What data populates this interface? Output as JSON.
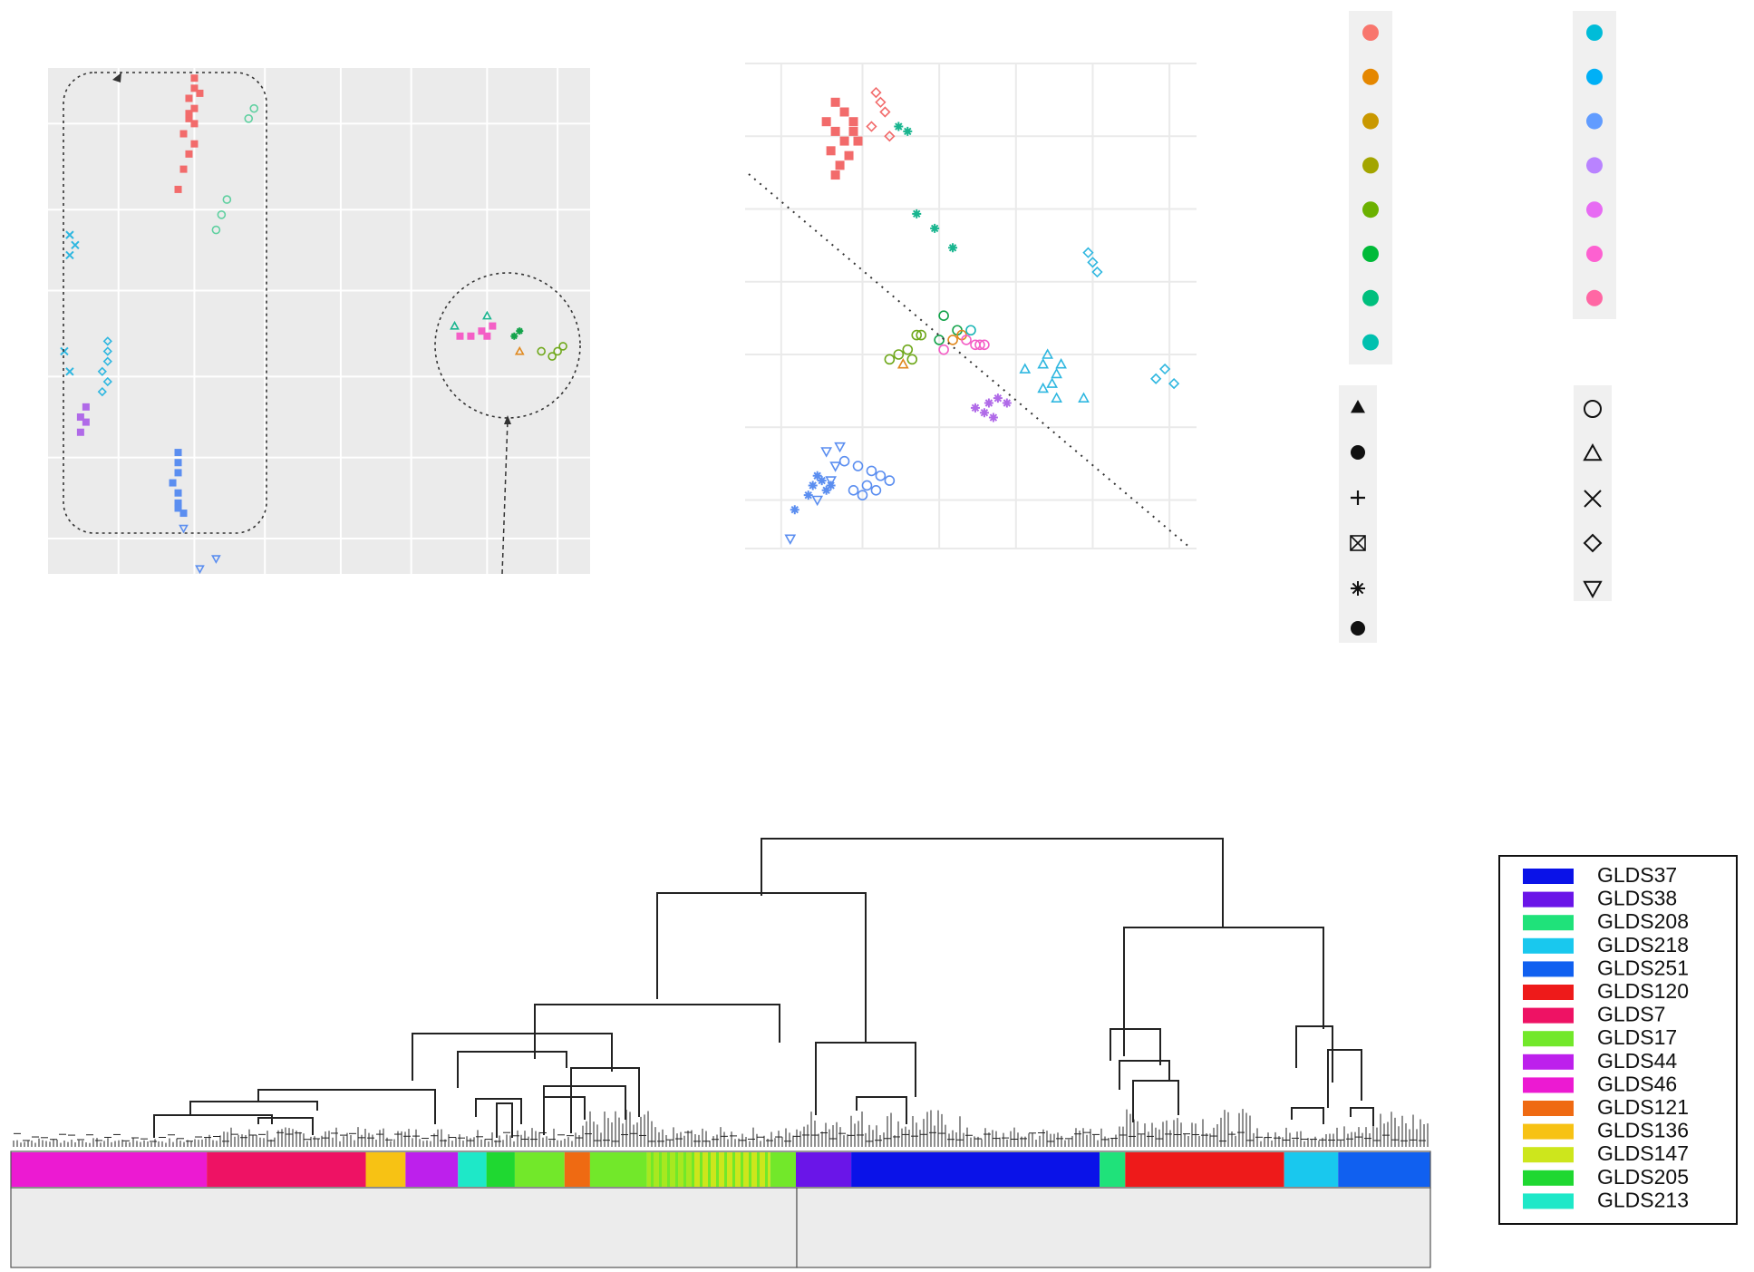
{
  "chart_data": [
    {
      "type": "scatter",
      "panel": "left",
      "title": "",
      "xlabel": "",
      "ylabel": "",
      "grid": true,
      "background": "#ebebeb",
      "annotations": [
        "dotted rounded-rectangle group",
        "dotted circle group",
        "dashed arrows"
      ],
      "series": [
        {
          "color": "#f26b6b",
          "shape": "square",
          "points": [
            [
              0.27,
              0.02
            ],
            [
              0.27,
              0.04
            ],
            [
              0.26,
              0.06
            ],
            [
              0.27,
              0.08
            ],
            [
              0.26,
              0.1
            ],
            [
              0.27,
              0.11
            ],
            [
              0.25,
              0.13
            ],
            [
              0.27,
              0.15
            ],
            [
              0.26,
              0.17
            ],
            [
              0.25,
              0.2
            ],
            [
              0.24,
              0.24
            ],
            [
              0.26,
              0.09
            ],
            [
              0.28,
              0.05
            ]
          ]
        },
        {
          "color": "#5fd0a0",
          "shape": "circle",
          "points": [
            [
              0.38,
              0.08
            ],
            [
              0.37,
              0.1
            ],
            [
              0.33,
              0.26
            ],
            [
              0.32,
              0.29
            ],
            [
              0.31,
              0.32
            ]
          ]
        },
        {
          "color": "#2fb7e0",
          "shape": "cross",
          "points": [
            [
              0.04,
              0.33
            ],
            [
              0.05,
              0.35
            ],
            [
              0.04,
              0.37
            ],
            [
              0.03,
              0.56
            ],
            [
              0.04,
              0.6
            ]
          ]
        },
        {
          "color": "#2fb7e0",
          "shape": "diamond",
          "points": [
            [
              0.11,
              0.54
            ],
            [
              0.11,
              0.56
            ],
            [
              0.11,
              0.58
            ],
            [
              0.1,
              0.6
            ],
            [
              0.11,
              0.62
            ],
            [
              0.1,
              0.64
            ]
          ]
        },
        {
          "color": "#b06ae8",
          "shape": "square",
          "points": [
            [
              0.07,
              0.67
            ],
            [
              0.06,
              0.69
            ],
            [
              0.07,
              0.7
            ],
            [
              0.06,
              0.72
            ]
          ]
        },
        {
          "color": "#5b8ef0",
          "shape": "square",
          "points": [
            [
              0.24,
              0.76
            ],
            [
              0.24,
              0.78
            ],
            [
              0.24,
              0.8
            ],
            [
              0.23,
              0.82
            ],
            [
              0.24,
              0.84
            ],
            [
              0.24,
              0.86
            ],
            [
              0.25,
              0.88
            ],
            [
              0.24,
              0.87
            ]
          ]
        },
        {
          "color": "#5b8ef0",
          "shape": "triangle-down",
          "points": [
            [
              0.25,
              0.91
            ],
            [
              0.31,
              0.97
            ],
            [
              0.28,
              0.99
            ]
          ]
        },
        {
          "color": "#f45fc6",
          "shape": "square",
          "points": [
            [
              0.76,
              0.53
            ],
            [
              0.78,
              0.53
            ],
            [
              0.8,
              0.52
            ],
            [
              0.81,
              0.53
            ],
            [
              0.82,
              0.51
            ]
          ]
        },
        {
          "color": "#19b58f",
          "shape": "triangle",
          "points": [
            [
              0.75,
              0.51
            ],
            [
              0.81,
              0.49
            ]
          ]
        },
        {
          "color": "#13a34a",
          "shape": "star",
          "points": [
            [
              0.86,
              0.53
            ],
            [
              0.87,
              0.52
            ]
          ]
        },
        {
          "color": "#e0891f",
          "shape": "triangle",
          "points": [
            [
              0.87,
              0.56
            ]
          ]
        },
        {
          "color": "#6fa81b",
          "shape": "circle",
          "points": [
            [
              0.91,
              0.56
            ],
            [
              0.93,
              0.57
            ],
            [
              0.94,
              0.56
            ],
            [
              0.95,
              0.55
            ]
          ]
        }
      ]
    },
    {
      "type": "scatter",
      "panel": "right",
      "title": "",
      "xlabel": "",
      "ylabel": "",
      "grid": true,
      "background": "#ffffff",
      "annotations": [
        "dotted diagonal line"
      ],
      "series": [
        {
          "color": "#f26b6b",
          "shape": "square",
          "points": [
            [
              0.2,
              0.08
            ],
            [
              0.22,
              0.1
            ],
            [
              0.18,
              0.12
            ],
            [
              0.24,
              0.12
            ],
            [
              0.2,
              0.14
            ],
            [
              0.22,
              0.16
            ],
            [
              0.25,
              0.16
            ],
            [
              0.19,
              0.18
            ],
            [
              0.23,
              0.19
            ],
            [
              0.21,
              0.21
            ],
            [
              0.2,
              0.23
            ],
            [
              0.24,
              0.14
            ]
          ]
        },
        {
          "color": "#f26b6b",
          "shape": "diamond",
          "points": [
            [
              0.29,
              0.06
            ],
            [
              0.3,
              0.08
            ],
            [
              0.31,
              0.1
            ],
            [
              0.28,
              0.13
            ],
            [
              0.32,
              0.15
            ]
          ]
        },
        {
          "color": "#19b58f",
          "shape": "star",
          "points": [
            [
              0.34,
              0.13
            ],
            [
              0.36,
              0.14
            ],
            [
              0.38,
              0.31
            ],
            [
              0.42,
              0.34
            ],
            [
              0.46,
              0.38
            ]
          ]
        },
        {
          "color": "#2fb7e0",
          "shape": "diamond",
          "points": [
            [
              0.76,
              0.39
            ],
            [
              0.77,
              0.41
            ],
            [
              0.78,
              0.43
            ],
            [
              0.91,
              0.65
            ],
            [
              0.93,
              0.63
            ],
            [
              0.95,
              0.66
            ]
          ]
        },
        {
          "color": "#2fb7e0",
          "shape": "triangle",
          "points": [
            [
              0.62,
              0.63
            ],
            [
              0.66,
              0.62
            ],
            [
              0.67,
              0.6
            ],
            [
              0.69,
              0.64
            ],
            [
              0.68,
              0.66
            ],
            [
              0.7,
              0.62
            ],
            [
              0.66,
              0.67
            ],
            [
              0.69,
              0.69
            ],
            [
              0.75,
              0.69
            ]
          ]
        },
        {
          "color": "#13a34a",
          "shape": "circle",
          "points": [
            [
              0.44,
              0.52
            ],
            [
              0.47,
              0.55
            ],
            [
              0.43,
              0.57
            ]
          ]
        },
        {
          "color": "#e0891f",
          "shape": "circle",
          "points": [
            [
              0.46,
              0.57
            ],
            [
              0.48,
              0.56
            ]
          ]
        },
        {
          "color": "#6fa81b",
          "shape": "circle",
          "points": [
            [
              0.32,
              0.61
            ],
            [
              0.34,
              0.6
            ],
            [
              0.36,
              0.59
            ],
            [
              0.37,
              0.61
            ],
            [
              0.38,
              0.56
            ],
            [
              0.39,
              0.56
            ]
          ]
        },
        {
          "color": "#e0891f",
          "shape": "triangle",
          "points": [
            [
              0.35,
              0.62
            ]
          ]
        },
        {
          "color": "#f45fc6",
          "shape": "circle",
          "points": [
            [
              0.49,
              0.57
            ],
            [
              0.51,
              0.58
            ],
            [
              0.52,
              0.58
            ],
            [
              0.53,
              0.58
            ],
            [
              0.44,
              0.59
            ]
          ]
        },
        {
          "color": "#19b5b5",
          "shape": "circle",
          "points": [
            [
              0.5,
              0.55
            ]
          ]
        },
        {
          "color": "#b06ae8",
          "shape": "star",
          "points": [
            [
              0.51,
              0.71
            ],
            [
              0.53,
              0.72
            ],
            [
              0.54,
              0.7
            ],
            [
              0.56,
              0.69
            ],
            [
              0.58,
              0.7
            ],
            [
              0.55,
              0.73
            ]
          ]
        },
        {
          "color": "#5b8ef0",
          "shape": "triangle-down",
          "points": [
            [
              0.18,
              0.8
            ],
            [
              0.21,
              0.79
            ],
            [
              0.2,
              0.83
            ],
            [
              0.19,
              0.86
            ],
            [
              0.16,
              0.9
            ],
            [
              0.1,
              0.98
            ]
          ]
        },
        {
          "color": "#5b8ef0",
          "shape": "circle",
          "points": [
            [
              0.22,
              0.82
            ],
            [
              0.25,
              0.83
            ],
            [
              0.28,
              0.84
            ],
            [
              0.3,
              0.85
            ],
            [
              0.27,
              0.87
            ],
            [
              0.32,
              0.86
            ],
            [
              0.24,
              0.88
            ],
            [
              0.29,
              0.88
            ],
            [
              0.26,
              0.89
            ]
          ]
        },
        {
          "color": "#5b8ef0",
          "shape": "star",
          "points": [
            [
              0.16,
              0.85
            ],
            [
              0.17,
              0.86
            ],
            [
              0.15,
              0.87
            ],
            [
              0.18,
              0.88
            ],
            [
              0.14,
              0.89
            ],
            [
              0.19,
              0.87
            ],
            [
              0.11,
              0.92
            ]
          ]
        }
      ]
    },
    {
      "type": "table",
      "panel": "top-legend",
      "title": "",
      "colors_column_1": [
        "#f8766d",
        "#e58700",
        "#c99800",
        "#a3a500",
        "#6bb100",
        "#00ba38",
        "#00bf7d",
        "#00c0af"
      ],
      "colors_column_2": [
        "#00bcd8",
        "#00b0f6",
        "#619cff",
        "#b983ff",
        "#e76bf3",
        "#fd61d1",
        "#ff67a4"
      ],
      "shapes_column_1": [
        "triangle-filled",
        "square-filled",
        "plus",
        "square-cross",
        "asterisk",
        "circle-filled"
      ],
      "shapes_column_2": [
        "circle-open",
        "triangle-open",
        "x",
        "diamond-open",
        "triangle-down-open"
      ]
    },
    {
      "type": "dendrogram",
      "panel": "bottom",
      "title": "",
      "xlabel": "",
      "ylabel": "",
      "legend_position": "right",
      "legend": [
        {
          "label": "GLDS37",
          "color": "#0a12e8"
        },
        {
          "label": "GLDS38",
          "color": "#6a15e8"
        },
        {
          "label": "GLDS208",
          "color": "#1fe27a"
        },
        {
          "label": "GLDS218",
          "color": "#19c8ee"
        },
        {
          "label": "GLDS251",
          "color": "#1060f0"
        },
        {
          "label": "GLDS120",
          "color": "#ee1a1a"
        },
        {
          "label": "GLDS7",
          "color": "#ee1264"
        },
        {
          "label": "GLDS17",
          "color": "#72e82a"
        },
        {
          "label": "GLDS44",
          "color": "#bd20ec"
        },
        {
          "label": "GLDS46",
          "color": "#ec1ad2"
        },
        {
          "label": "GLDS121",
          "color": "#ef6a12"
        },
        {
          "label": "GLDS136",
          "color": "#f7c214"
        },
        {
          "label": "GLDS147",
          "color": "#cde61c"
        },
        {
          "label": "GLDS205",
          "color": "#1fd831"
        },
        {
          "label": "GLDS213",
          "color": "#1ee8c8"
        }
      ],
      "color_bar": [
        {
          "start": 0.0,
          "end": 0.138,
          "color": "#ec1ad2"
        },
        {
          "start": 0.138,
          "end": 0.25,
          "color": "#ee1264"
        },
        {
          "start": 0.25,
          "end": 0.278,
          "color": "#f7c214"
        },
        {
          "start": 0.278,
          "end": 0.315,
          "color": "#bd20ec"
        },
        {
          "start": 0.315,
          "end": 0.335,
          "color": "#1ee8c8"
        },
        {
          "start": 0.335,
          "end": 0.355,
          "color": "#1fd831"
        },
        {
          "start": 0.355,
          "end": 0.39,
          "color": "#72e82a"
        },
        {
          "start": 0.39,
          "end": 0.408,
          "color": "#ef6a12"
        },
        {
          "start": 0.408,
          "end": 0.448,
          "color": "#72e82a"
        },
        {
          "start": 0.448,
          "end": 0.48,
          "color": "#a8e820"
        },
        {
          "start": 0.48,
          "end": 0.535,
          "color": "#cde61c"
        },
        {
          "start": 0.535,
          "end": 0.553,
          "color": "#72e82a"
        },
        {
          "start": 0.553,
          "end": 0.59,
          "color": "#1fd831"
        },
        {
          "start": 0.59,
          "end": 0.59,
          "color": "#1fd831"
        },
        {
          "start": 0.553,
          "end": 0.592,
          "color": "#6a15e8"
        },
        {
          "start": 0.592,
          "end": 0.767,
          "color": "#0a12e8"
        },
        {
          "start": 0.767,
          "end": 0.785,
          "color": "#1fe27a"
        },
        {
          "start": 0.785,
          "end": 0.897,
          "color": "#ee1a1a"
        },
        {
          "start": 0.897,
          "end": 0.935,
          "color": "#19c8ee"
        },
        {
          "start": 0.935,
          "end": 1.0,
          "color": "#1060f0"
        }
      ]
    }
  ]
}
